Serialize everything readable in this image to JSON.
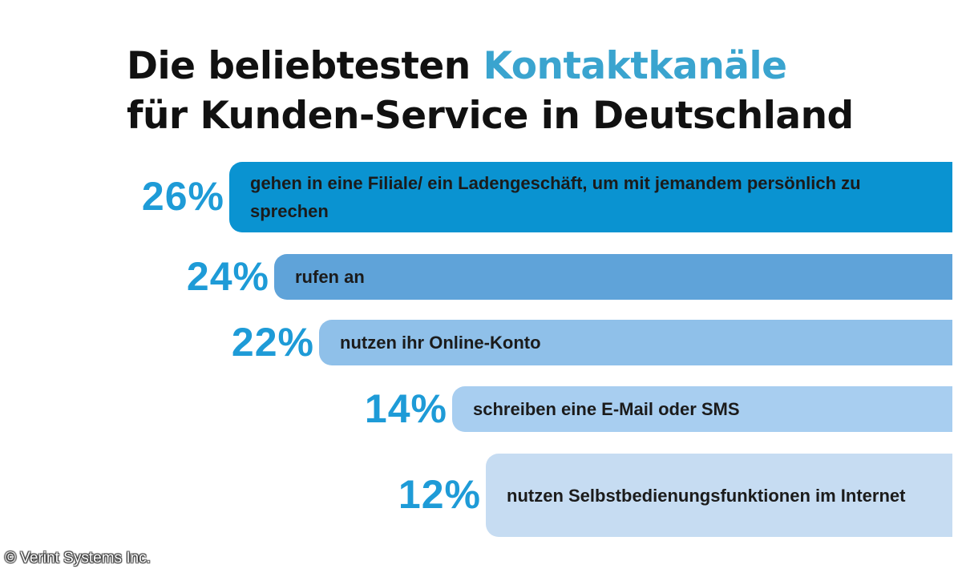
{
  "chart_data": {
    "type": "bar",
    "orientation": "horizontal",
    "title_line1_prefix": "Die beliebtesten",
    "title_line1_accent": "Kontaktkanäle",
    "title_line2": "für Kunden-Service in Deutschland",
    "unit": "%",
    "categories": [
      "gehen in eine Filiale/ ein Ladengeschäft, um mit jemandem persönlich zu sprechen",
      "rufen an",
      "nutzen ihr Online-Konto",
      "schreiben eine E-Mail oder SMS",
      "nutzen Selbstbedienungsfunktionen im Internet"
    ],
    "values": [
      26,
      24,
      22,
      14,
      12
    ],
    "labels": [
      "26%",
      "24%",
      "22%",
      "14%",
      "12%"
    ],
    "bar_colors": [
      "#0a93d1",
      "#5fa3d9",
      "#8fc0e9",
      "#a8cef0",
      "#c6dcf2"
    ],
    "label_color": "#1e9bd7"
  },
  "colors": {
    "accent": "#3aa4cf",
    "title": "#111111"
  },
  "copyright": "© Verint Systems Inc."
}
